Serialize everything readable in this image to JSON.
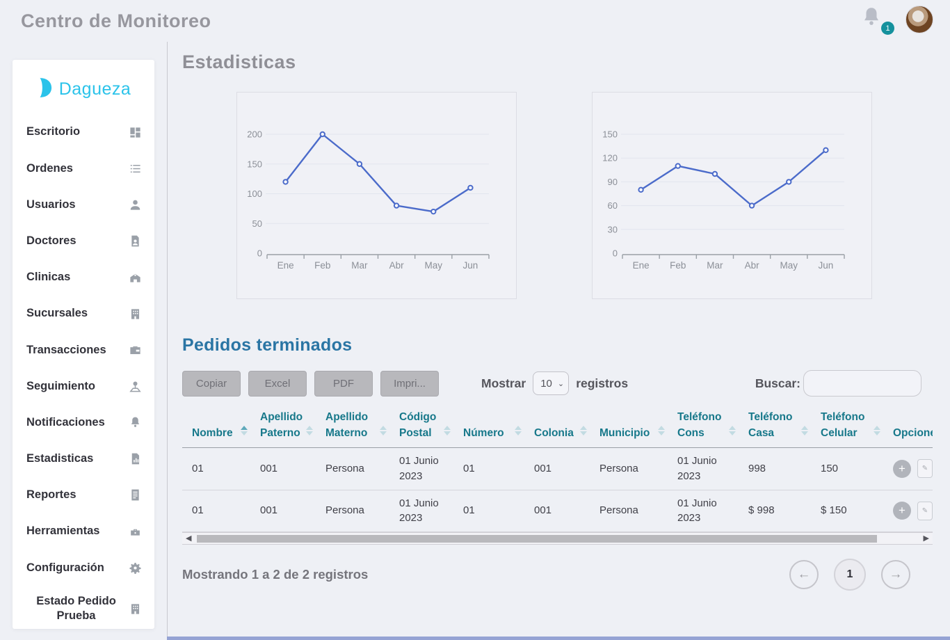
{
  "header": {
    "title": "Centro de Monitoreo",
    "notifications_badge": "1"
  },
  "sidebar": {
    "brand": "Dagueza",
    "items": [
      {
        "label": "Escritorio",
        "icon": "dashboard-icon"
      },
      {
        "label": "Ordenes",
        "icon": "list-icon"
      },
      {
        "label": "Usuarios",
        "icon": "user-icon"
      },
      {
        "label": "Doctores",
        "icon": "doctor-file-icon"
      },
      {
        "label": "Clinicas",
        "icon": "clinic-icon"
      },
      {
        "label": "Sucursales",
        "icon": "building-icon"
      },
      {
        "label": "Transacciones",
        "icon": "wallet-icon"
      },
      {
        "label": "Seguimiento",
        "icon": "tracking-pin-icon"
      },
      {
        "label": "Notificaciones",
        "icon": "bell-icon"
      },
      {
        "label": "Estadisticas",
        "icon": "stats-file-icon"
      },
      {
        "label": "Reportes",
        "icon": "report-icon"
      },
      {
        "label": "Herramientas",
        "icon": "tools-icon"
      },
      {
        "label": "Configuración",
        "icon": "gear-icon"
      },
      {
        "label": "Estado Pedido Prueba",
        "icon": "building-icon"
      }
    ]
  },
  "page_title": "Estadisticas",
  "chart_data": [
    {
      "type": "line",
      "categories": [
        "Ene",
        "Feb",
        "Mar",
        "Abr",
        "May",
        "Jun"
      ],
      "values": [
        120,
        200,
        150,
        80,
        70,
        110
      ],
      "title": "",
      "xlabel": "",
      "ylabel": "",
      "ylim": [
        0,
        200
      ],
      "yticks": [
        0,
        50,
        100,
        150,
        200
      ],
      "grid": true,
      "line_color": "#4b6bca"
    },
    {
      "type": "line",
      "categories": [
        "Ene",
        "Feb",
        "Mar",
        "Abr",
        "May",
        "Jun"
      ],
      "values": [
        80,
        110,
        100,
        60,
        90,
        130
      ],
      "title": "",
      "xlabel": "",
      "ylabel": "",
      "ylim": [
        0,
        150
      ],
      "yticks": [
        0,
        30,
        60,
        90,
        120,
        150
      ],
      "grid": true,
      "line_color": "#4b6bca"
    }
  ],
  "orders": {
    "title": "Pedidos terminados",
    "toolbar": {
      "buttons": [
        "Copiar",
        "Excel",
        "PDF",
        "Impri..."
      ],
      "show_label": "Mostrar",
      "page_size": "10",
      "records_label": "registros",
      "search_label": "Buscar:",
      "search_value": ""
    },
    "table": {
      "columns": [
        "Nombre",
        "Apellido Paterno",
        "Apellido Materno",
        "Código Postal",
        "Número",
        "Colonia",
        "Municipio",
        "Teléfono Cons",
        "Teléfono Casa",
        "Teléfono Celular",
        "Opciones"
      ],
      "sorted_column_index": 0,
      "rows": [
        [
          "01",
          "001",
          "Persona",
          "01 Junio 2023",
          "01",
          "001",
          "Persona",
          "01 Junio 2023",
          "998",
          "150"
        ],
        [
          "01",
          "001",
          "Persona",
          "01 Junio 2023",
          "01",
          "001",
          "Persona",
          "01 Junio 2023",
          "$ 998",
          "$ 150"
        ]
      ]
    },
    "summary": "Mostrando 1 a 2 de 2 registros",
    "pagination": {
      "current_page": "1"
    }
  },
  "colors": {
    "brand_cyan": "#2bc3ea",
    "badge_teal": "#15919d",
    "table_header_teal": "#17788a",
    "section_heading_blue": "#2a75a4",
    "chart_line_blue": "#4b6bca"
  }
}
